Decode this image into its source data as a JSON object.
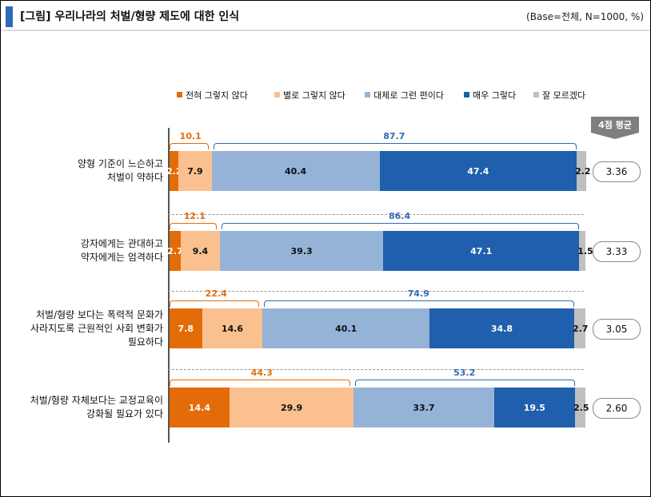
{
  "header": {
    "title": "[그림] 우리나라의 처벌/형량 제도에 대한 인식",
    "base": "(Base=전체, N=1000, %)"
  },
  "legend": [
    {
      "label": "전혀 그렇지 않다",
      "color": "#e36c09"
    },
    {
      "label": "별로 그렇지 않다",
      "color": "#fac090"
    },
    {
      "label": "대체로 그런 편이다",
      "color": "#95b3d7"
    },
    {
      "label": "매우 그렇다",
      "color": "#1f5fad"
    },
    {
      "label": "잘 모르겠다",
      "color": "#bfbfbf"
    }
  ],
  "avg_header": "4점 평균",
  "chart_data": {
    "type": "bar",
    "orientation": "horizontal",
    "stacked": true,
    "unit": "%",
    "categories": [
      "양형 기준이 느슨하고 처벌이 약하다",
      "강자에게는 관대하고 약자에게는 엄격하다",
      "처벌/형량 보다는 폭력적 문화가 사라지도록 근원적인 사회 변화가 필요하다",
      "처벌/형량 자체보다는 교정교육이 강화될 필요가 있다"
    ],
    "category_lines": [
      [
        "양형 기준이 느슨하고",
        "처벌이 약하다"
      ],
      [
        "강자에게는 관대하고",
        "약자에게는 엄격하다"
      ],
      [
        "처벌/형량 보다는 폭력적 문화가",
        "사라지도록 근원적인 사회 변화가",
        "필요하다"
      ],
      [
        "처벌/형량 자체보다는 교정교육이",
        "강화될 필요가 있다"
      ]
    ],
    "series": [
      {
        "name": "전혀 그렇지 않다",
        "values": [
          2.2,
          2.7,
          7.8,
          14.4
        ]
      },
      {
        "name": "별로 그렇지 않다",
        "values": [
          7.9,
          9.4,
          14.6,
          29.9
        ]
      },
      {
        "name": "대체로 그런 편이다",
        "values": [
          40.4,
          39.3,
          40.1,
          33.7
        ]
      },
      {
        "name": "매우 그렇다",
        "values": [
          47.4,
          47.1,
          34.8,
          19.5
        ]
      },
      {
        "name": "잘 모르겠다",
        "values": [
          2.2,
          1.5,
          2.7,
          2.5
        ]
      }
    ],
    "disagree_totals": [
      "10.1",
      "12.1",
      "22.4",
      "44.3"
    ],
    "agree_totals": [
      "87.7",
      "86.4",
      "74.9",
      "53.2"
    ],
    "averages": [
      "3.36",
      "3.33",
      "3.05",
      "2.60"
    ],
    "xlim": [
      0,
      100
    ]
  }
}
